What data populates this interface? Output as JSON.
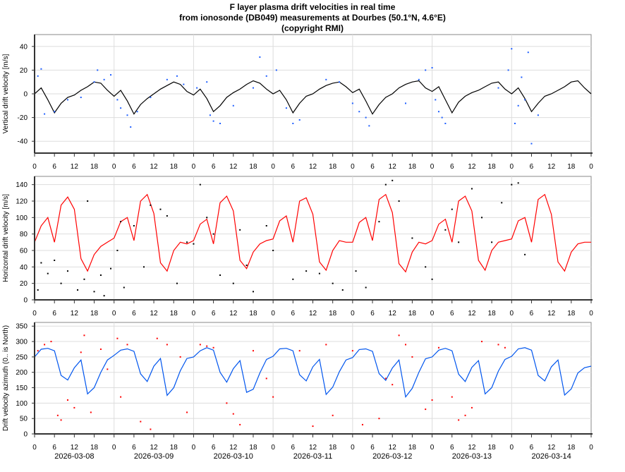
{
  "title_lines": [
    "F layer plasma drift velocities in real time",
    "from ionosonde (DB049) measurements at Dourbes (50.1°N, 4.6°E)",
    "(copyright RMI)"
  ],
  "chart_data": [
    {
      "type": "line",
      "ylabel": "Vertical drift velocity [m/s]",
      "ylim": [
        -50,
        50
      ],
      "yticks": [
        -40,
        -20,
        0,
        20,
        40
      ],
      "line_color": "#000000",
      "scatter_color": "#1f5fff",
      "x_step_hours": 2,
      "values": [
        0,
        5,
        -5,
        -16,
        -8,
        -3,
        -1,
        3,
        6,
        10,
        9,
        3,
        -2,
        3,
        -6,
        -17,
        -9,
        -4,
        0,
        4,
        7,
        10,
        8,
        2,
        -1,
        4,
        -4,
        -15,
        -10,
        -3,
        1,
        4,
        8,
        11,
        9,
        4,
        0,
        3,
        -5,
        -16,
        -8,
        -2,
        0,
        4,
        7,
        9,
        10,
        6,
        1,
        4,
        -6,
        -17,
        -9,
        -3,
        0,
        5,
        8,
        10,
        11,
        5,
        2,
        6,
        -5,
        -16,
        -7,
        -2,
        1,
        3,
        6,
        9,
        10,
        4,
        0,
        5,
        -4,
        -15,
        -8,
        -2,
        0,
        3,
        6,
        10,
        11,
        5,
        0
      ],
      "scatter": [
        [
          1,
          15
        ],
        [
          2,
          21
        ],
        [
          3,
          -17
        ],
        [
          6,
          -15
        ],
        [
          10,
          -5
        ],
        [
          14,
          -3
        ],
        [
          18,
          10
        ],
        [
          19,
          20
        ],
        [
          21,
          12
        ],
        [
          23,
          16
        ],
        [
          25,
          -5
        ],
        [
          26,
          -12
        ],
        [
          28,
          -18
        ],
        [
          29,
          -28
        ],
        [
          31,
          -15
        ],
        [
          35,
          -3
        ],
        [
          40,
          12
        ],
        [
          43,
          15
        ],
        [
          45,
          8
        ],
        [
          49,
          5
        ],
        [
          52,
          10
        ],
        [
          53,
          -18
        ],
        [
          54,
          -23
        ],
        [
          56,
          -25
        ],
        [
          60,
          -10
        ],
        [
          66,
          5
        ],
        [
          68,
          31
        ],
        [
          70,
          15
        ],
        [
          73,
          20
        ],
        [
          76,
          -12
        ],
        [
          78,
          -25
        ],
        [
          80,
          -22
        ],
        [
          88,
          12
        ],
        [
          92,
          10
        ],
        [
          96,
          -8
        ],
        [
          98,
          -15
        ],
        [
          100,
          -20
        ],
        [
          101,
          -27
        ],
        [
          112,
          -8
        ],
        [
          116,
          12
        ],
        [
          118,
          20
        ],
        [
          120,
          22
        ],
        [
          121,
          -5
        ],
        [
          122,
          -15
        ],
        [
          123,
          -20
        ],
        [
          124,
          -25
        ],
        [
          140,
          5
        ],
        [
          143,
          20
        ],
        [
          144,
          38
        ],
        [
          145,
          -25
        ],
        [
          146,
          -10
        ],
        [
          147,
          14
        ],
        [
          148,
          -5
        ],
        [
          149,
          35
        ],
        [
          150,
          -42
        ],
        [
          152,
          -18
        ]
      ]
    },
    {
      "type": "line",
      "ylabel": "Horizontal drift velocity [m/s]",
      "ylim": [
        0,
        150
      ],
      "yticks": [
        0,
        20,
        40,
        60,
        80,
        100,
        120,
        140
      ],
      "line_color": "#ff0000",
      "scatter_color": "#000000",
      "x_step_hours": 2,
      "values": [
        70,
        90,
        100,
        70,
        115,
        125,
        110,
        50,
        35,
        55,
        65,
        70,
        75,
        95,
        100,
        72,
        120,
        128,
        105,
        45,
        35,
        60,
        70,
        68,
        72,
        92,
        98,
        68,
        118,
        126,
        108,
        48,
        38,
        58,
        68,
        72,
        74,
        96,
        102,
        70,
        120,
        124,
        104,
        46,
        36,
        60,
        72,
        70,
        70,
        94,
        100,
        72,
        122,
        128,
        106,
        44,
        34,
        58,
        70,
        68,
        72,
        92,
        98,
        70,
        120,
        126,
        108,
        48,
        36,
        60,
        70,
        72,
        74,
        96,
        100,
        70,
        122,
        128,
        104,
        46,
        35,
        58,
        68,
        70,
        70
      ],
      "scatter": [
        [
          1,
          12
        ],
        [
          2,
          45
        ],
        [
          4,
          32
        ],
        [
          6,
          48
        ],
        [
          8,
          20
        ],
        [
          10,
          35
        ],
        [
          13,
          12
        ],
        [
          15,
          25
        ],
        [
          16,
          120
        ],
        [
          18,
          10
        ],
        [
          20,
          30
        ],
        [
          21,
          5
        ],
        [
          23,
          38
        ],
        [
          25,
          60
        ],
        [
          26,
          95
        ],
        [
          27,
          15
        ],
        [
          30,
          90
        ],
        [
          33,
          40
        ],
        [
          35,
          115
        ],
        [
          38,
          110
        ],
        [
          40,
          102
        ],
        [
          43,
          20
        ],
        [
          46,
          70
        ],
        [
          48,
          68
        ],
        [
          50,
          140
        ],
        [
          52,
          100
        ],
        [
          54,
          80
        ],
        [
          56,
          30
        ],
        [
          60,
          20
        ],
        [
          62,
          85
        ],
        [
          64,
          42
        ],
        [
          66,
          10
        ],
        [
          70,
          90
        ],
        [
          72,
          60
        ],
        [
          78,
          25
        ],
        [
          82,
          35
        ],
        [
          86,
          32
        ],
        [
          90,
          20
        ],
        [
          93,
          12
        ],
        [
          97,
          35
        ],
        [
          100,
          15
        ],
        [
          104,
          95
        ],
        [
          106,
          140
        ],
        [
          108,
          145
        ],
        [
          110,
          120
        ],
        [
          114,
          75
        ],
        [
          118,
          40
        ],
        [
          120,
          25
        ],
        [
          124,
          85
        ],
        [
          126,
          110
        ],
        [
          128,
          70
        ],
        [
          132,
          135
        ],
        [
          135,
          100
        ],
        [
          138,
          70
        ],
        [
          141,
          118
        ],
        [
          144,
          140
        ],
        [
          146,
          142
        ],
        [
          148,
          55
        ]
      ]
    },
    {
      "type": "line",
      "ylabel": "Drift velocity azimuth (0.. is North)",
      "ylim": [
        0,
        362
      ],
      "yticks": [
        0,
        50,
        100,
        150,
        200,
        250,
        300,
        350
      ],
      "line_color": "#0055ee",
      "scatter_color": "#ff0000",
      "x_step_hours": 2,
      "values": [
        250,
        275,
        278,
        270,
        190,
        175,
        215,
        240,
        130,
        150,
        200,
        240,
        255,
        272,
        276,
        268,
        195,
        170,
        220,
        245,
        125,
        150,
        205,
        245,
        250,
        270,
        280,
        272,
        200,
        168,
        212,
        238,
        135,
        145,
        198,
        242,
        252,
        276,
        278,
        270,
        192,
        172,
        218,
        242,
        128,
        152,
        202,
        240,
        248,
        274,
        276,
        268,
        196,
        174,
        214,
        240,
        120,
        148,
        200,
        244,
        250,
        272,
        278,
        270,
        194,
        170,
        216,
        238,
        130,
        150,
        204,
        242,
        252,
        276,
        280,
        272,
        190,
        172,
        218,
        240,
        126,
        146,
        198,
        215,
        220
      ],
      "scatter": [
        [
          0,
          170
        ],
        [
          1,
          270
        ],
        [
          3,
          290
        ],
        [
          5,
          300
        ],
        [
          7,
          60
        ],
        [
          8,
          45
        ],
        [
          10,
          110
        ],
        [
          12,
          85
        ],
        [
          14,
          265
        ],
        [
          15,
          320
        ],
        [
          17,
          70
        ],
        [
          20,
          275
        ],
        [
          22,
          210
        ],
        [
          25,
          310
        ],
        [
          26,
          120
        ],
        [
          28,
          290
        ],
        [
          32,
          40
        ],
        [
          35,
          15
        ],
        [
          37,
          310
        ],
        [
          40,
          290
        ],
        [
          44,
          250
        ],
        [
          46,
          70
        ],
        [
          50,
          290
        ],
        [
          52,
          285
        ],
        [
          54,
          280
        ],
        [
          58,
          100
        ],
        [
          60,
          65
        ],
        [
          62,
          30
        ],
        [
          66,
          270
        ],
        [
          70,
          180
        ],
        [
          72,
          120
        ],
        [
          80,
          270
        ],
        [
          84,
          25
        ],
        [
          88,
          290
        ],
        [
          90,
          60
        ],
        [
          96,
          270
        ],
        [
          99,
          30
        ],
        [
          104,
          50
        ],
        [
          106,
          180
        ],
        [
          108,
          160
        ],
        [
          110,
          320
        ],
        [
          112,
          290
        ],
        [
          114,
          250
        ],
        [
          118,
          80
        ],
        [
          120,
          110
        ],
        [
          122,
          280
        ],
        [
          126,
          120
        ],
        [
          128,
          45
        ],
        [
          130,
          60
        ],
        [
          132,
          85
        ],
        [
          135,
          300
        ],
        [
          140,
          290
        ],
        [
          142,
          280
        ]
      ]
    }
  ],
  "x_axis": {
    "hour_ticks": [
      "0",
      "6",
      "12",
      "18"
    ],
    "final_tick": "0",
    "dates": [
      "2026-03-08",
      "2026-03-09",
      "2026-03-10",
      "2026-03-11",
      "2026-03-12",
      "2026-03-13",
      "2026-03-14"
    ]
  }
}
